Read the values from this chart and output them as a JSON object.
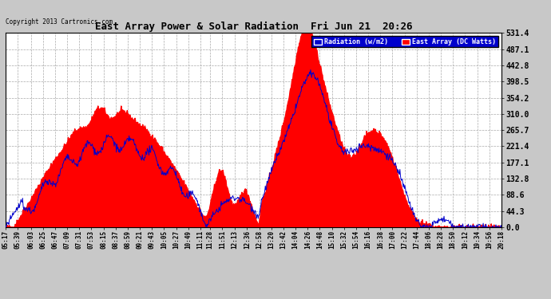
{
  "title": "East Array Power & Solar Radiation  Fri Jun 21  20:26",
  "copyright": "Copyright 2013 Cartronics.com",
  "legend_radiation": "Radiation (w/m2)",
  "legend_east_array": "East Array (DC Watts)",
  "y_ticks": [
    0.0,
    44.3,
    88.6,
    132.8,
    177.1,
    221.4,
    265.7,
    310.0,
    354.2,
    398.5,
    442.8,
    487.1,
    531.4
  ],
  "y_max": 531.4,
  "y_min": 0.0,
  "background_color": "#c8c8c8",
  "plot_bg_color": "#ffffff",
  "fill_color": "#ff0000",
  "line_color_radiation": "#0000cc",
  "grid_color": "#c8c8c8",
  "title_color": "#000000",
  "x_labels": [
    "05:17",
    "05:39",
    "06:03",
    "06:25",
    "06:47",
    "07:09",
    "07:31",
    "07:53",
    "08:15",
    "08:37",
    "08:59",
    "09:21",
    "09:43",
    "10:05",
    "10:27",
    "10:49",
    "11:11",
    "11:28",
    "11:51",
    "12:13",
    "12:36",
    "12:58",
    "13:20",
    "13:42",
    "14:04",
    "14:26",
    "14:48",
    "15:10",
    "15:32",
    "15:54",
    "16:16",
    "16:38",
    "17:00",
    "17:22",
    "17:44",
    "18:06",
    "18:28",
    "18:50",
    "19:12",
    "19:34",
    "19:56",
    "20:18"
  ]
}
